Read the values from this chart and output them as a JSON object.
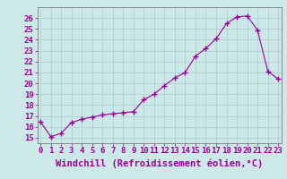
{
  "x": [
    0,
    1,
    2,
    3,
    4,
    5,
    6,
    7,
    8,
    9,
    10,
    11,
    12,
    13,
    14,
    15,
    16,
    17,
    18,
    19,
    20,
    21,
    22,
    23
  ],
  "y": [
    16.5,
    15.1,
    15.4,
    16.4,
    16.7,
    16.9,
    17.1,
    17.2,
    17.3,
    17.4,
    18.5,
    19.0,
    19.8,
    20.5,
    21.0,
    22.5,
    23.2,
    24.1,
    25.5,
    26.1,
    26.2,
    24.9,
    21.1,
    20.4
  ],
  "line_color": "#990099",
  "marker": "+",
  "marker_size": 4,
  "marker_linewidth": 1.0,
  "xlabel": "Windchill (Refroidissement éolien,°C)",
  "xlabel_color": "#990099",
  "xlabel_fontsize": 7.5,
  "xtick_labels": [
    "0",
    "1",
    "2",
    "3",
    "4",
    "5",
    "6",
    "7",
    "8",
    "9",
    "10",
    "11",
    "12",
    "13",
    "14",
    "15",
    "16",
    "17",
    "18",
    "19",
    "20",
    "21",
    "22",
    "23"
  ],
  "ylim": [
    14.5,
    27.0
  ],
  "xlim": [
    -0.3,
    23.3
  ],
  "ytick_min": 15,
  "ytick_max": 26,
  "background_color": "#cce8e8",
  "grid_color": "#aacccc",
  "tick_color": "#990099",
  "tick_fontsize": 6.5,
  "line_width": 0.8,
  "spine_color": "#666666"
}
